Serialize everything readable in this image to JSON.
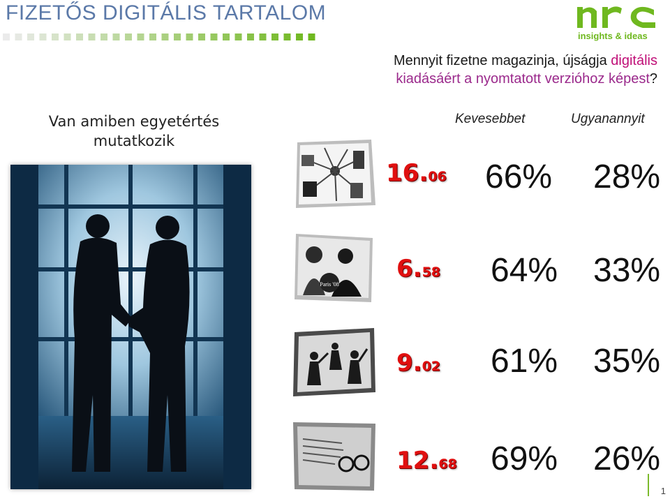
{
  "header": {
    "title": "FIZETŐS DIGITÁLIS TARTALOM"
  },
  "logo": {
    "tagline": "insights & ideas"
  },
  "question": {
    "line1_plain": "Mennyit fizetne magazinja, újságja ",
    "line1_hl": "digitális",
    "line2_hl": "kiadásáért a nyomtatott verzióhoz képest",
    "line2_end": "?"
  },
  "subhead": {
    "line1": "Van amiben egyetértés",
    "line2": "mutatkozik"
  },
  "columns": {
    "less": "Kevesebbet",
    "same": "Ugyanannyit"
  },
  "rows": [
    {
      "date_int": "16.",
      "date_dec": "06",
      "less": "66%",
      "same": "28%",
      "icon": "mobile-devices-icon"
    },
    {
      "date_int": "6.",
      "date_dec": "58",
      "less": "64%",
      "same": "33%",
      "icon": "celebrity-magazine-icon"
    },
    {
      "date_int": "9.",
      "date_dec": "02",
      "less": "61%",
      "same": "35%",
      "icon": "dancing-people-icon"
    },
    {
      "date_int": "12.",
      "date_dec": "68",
      "less": "69%",
      "same": "26%",
      "icon": "newspaper-glasses-icon"
    }
  ],
  "page": {
    "number": "1"
  },
  "colors": {
    "title": "#5b79a8",
    "highlight": "#c01078",
    "number_red": "#e01010",
    "brand_green": "#6fb81f"
  }
}
